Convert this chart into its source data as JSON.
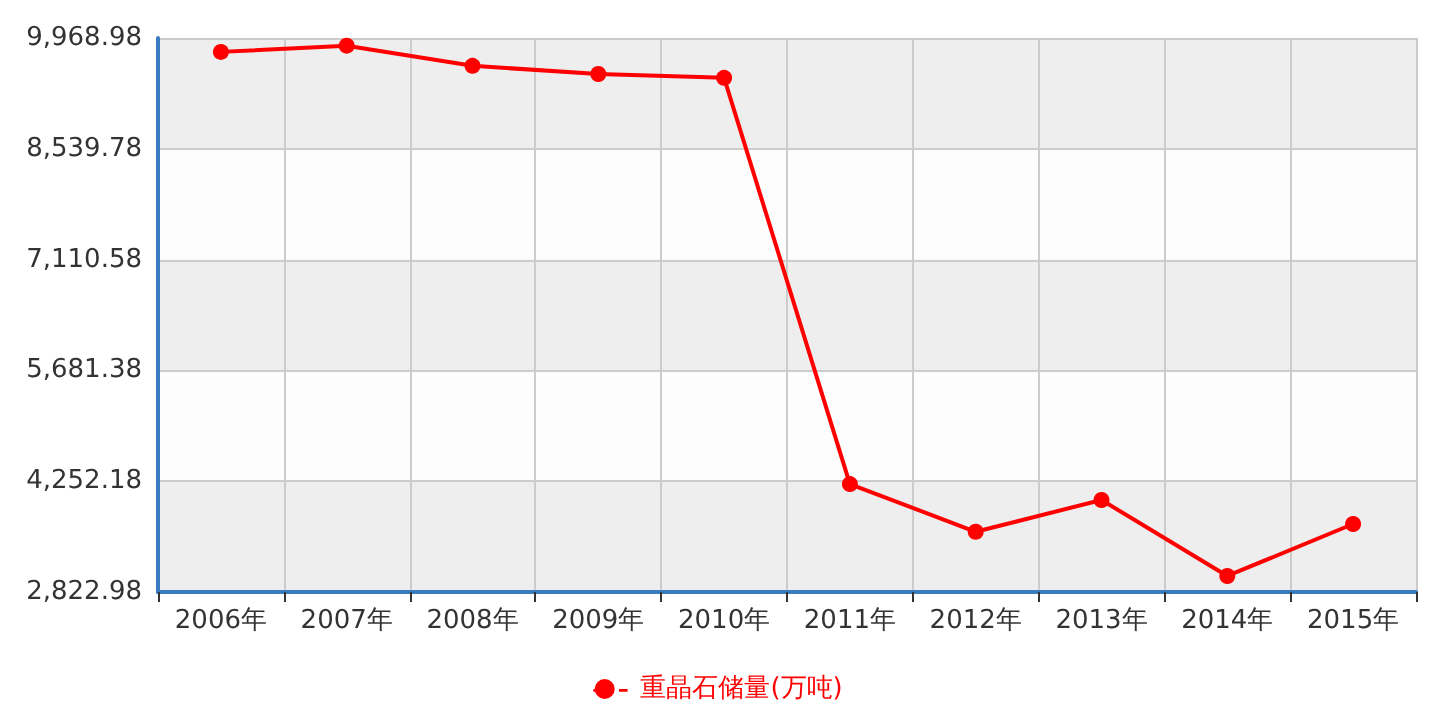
{
  "chart_data": {
    "type": "line",
    "categories": [
      "2006年",
      "2007年",
      "2008年",
      "2009年",
      "2010年",
      "2011年",
      "2012年",
      "2013年",
      "2014年",
      "2015年"
    ],
    "series": [
      {
        "name": "重晶石储量(万吨)",
        "color": "#ff0000",
        "values": [
          9790,
          9870,
          9610,
          9505,
          9455,
          4215,
          3600,
          4010,
          3030,
          3700
        ]
      }
    ],
    "ylim": [
      2822.98,
      9968.98
    ],
    "yticks": [
      {
        "value": 2822.98,
        "label": "2,822.98"
      },
      {
        "value": 4252.18,
        "label": "4,252.18"
      },
      {
        "value": 5681.38,
        "label": "5,681.38"
      },
      {
        "value": 7110.58,
        "label": "7,110.58"
      },
      {
        "value": 8539.78,
        "label": "8,539.78"
      },
      {
        "value": 9968.98,
        "label": "9,968.98"
      }
    ],
    "grid": true,
    "legend": "bottom",
    "marker": "circle",
    "line_style": "solid"
  }
}
